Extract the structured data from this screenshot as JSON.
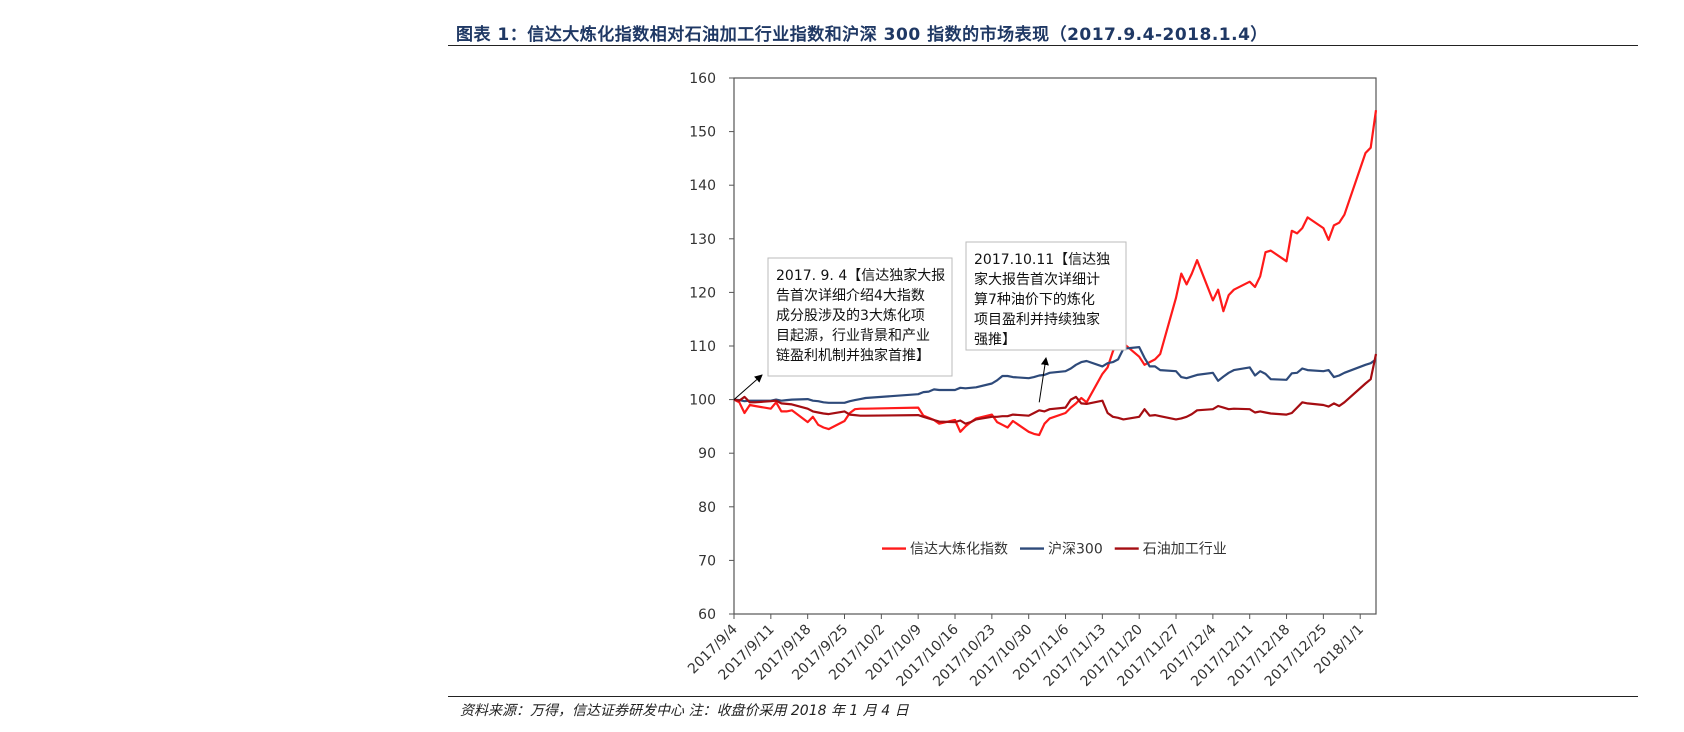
{
  "header": {
    "title": "图表 1：信达大炼化指数相对石油加工行业指数和沪深 300 指数的市场表现（2017.9.4-2018.1.4）"
  },
  "footer": {
    "source": "资料来源：万得，信达证券研发中心 注：收盘价采用 2018 年 1 月 4 日"
  },
  "chart_data": {
    "type": "line",
    "title": "",
    "xlabel": "",
    "ylabel": "",
    "ylim": [
      60,
      160
    ],
    "yticks": [
      60,
      70,
      80,
      90,
      100,
      110,
      120,
      130,
      140,
      150,
      160
    ],
    "xlim": [
      "2017/9/4",
      "2018/1/4"
    ],
    "xticks": [
      "2017/9/4",
      "2017/9/11",
      "2017/9/18",
      "2017/9/25",
      "2017/10/2",
      "2017/10/9",
      "2017/10/16",
      "2017/10/23",
      "2017/10/30",
      "2017/11/6",
      "2017/11/13",
      "2017/11/20",
      "2017/11/27",
      "2017/12/4",
      "2017/12/11",
      "2017/12/18",
      "2017/12/25",
      "2018/1/1"
    ],
    "grid": false,
    "legend_position": "bottom-center",
    "series": [
      {
        "name": "信达大炼化指数",
        "color": "#ff1a1a",
        "points": [
          [
            "2017/9/4",
            100
          ],
          [
            "2017/9/5",
            99.5
          ],
          [
            "2017/9/6",
            97.5
          ],
          [
            "2017/9/7",
            99
          ],
          [
            "2017/9/8",
            98.8
          ],
          [
            "2017/9/11",
            98.3
          ],
          [
            "2017/9/12",
            99.5
          ],
          [
            "2017/9/13",
            97.8
          ],
          [
            "2017/9/14",
            97.8
          ],
          [
            "2017/9/15",
            98
          ],
          [
            "2017/9/18",
            95.8
          ],
          [
            "2017/9/19",
            96.8
          ],
          [
            "2017/9/20",
            95.3
          ],
          [
            "2017/9/21",
            94.8
          ],
          [
            "2017/9/22",
            94.5
          ],
          [
            "2017/9/25",
            96
          ],
          [
            "2017/9/26",
            97.5
          ],
          [
            "2017/9/27",
            98.2
          ],
          [
            "2017/9/28",
            98.3
          ],
          [
            "2017/9/29",
            98.3
          ],
          [
            "2017/10/9",
            98.5
          ],
          [
            "2017/10/10",
            97
          ],
          [
            "2017/10/11",
            96.6
          ],
          [
            "2017/10/12",
            96.2
          ],
          [
            "2017/10/13",
            95.5
          ],
          [
            "2017/10/16",
            96.2
          ],
          [
            "2017/10/17",
            94
          ],
          [
            "2017/10/18",
            95
          ],
          [
            "2017/10/19",
            95.8
          ],
          [
            "2017/10/20",
            96.5
          ],
          [
            "2017/10/23",
            97.2
          ],
          [
            "2017/10/24",
            95.8
          ],
          [
            "2017/10/25",
            95.3
          ],
          [
            "2017/10/26",
            94.8
          ],
          [
            "2017/10/27",
            96
          ],
          [
            "2017/10/30",
            94
          ],
          [
            "2017/10/31",
            93.6
          ],
          [
            "2017/11/1",
            93.4
          ],
          [
            "2017/11/2",
            95.5
          ],
          [
            "2017/11/3",
            96.5
          ],
          [
            "2017/11/6",
            97.5
          ],
          [
            "2017/11/7",
            98.5
          ],
          [
            "2017/11/8",
            99.3
          ],
          [
            "2017/11/9",
            100.3
          ],
          [
            "2017/11/10",
            99.5
          ],
          [
            "2017/11/13",
            104.8
          ],
          [
            "2017/11/14",
            106
          ],
          [
            "2017/11/15",
            109
          ],
          [
            "2017/11/16",
            111
          ],
          [
            "2017/11/17",
            110.5
          ],
          [
            "2017/11/20",
            108
          ],
          [
            "2017/11/21",
            106.5
          ],
          [
            "2017/11/22",
            107
          ],
          [
            "2017/11/23",
            107.5
          ],
          [
            "2017/11/24",
            108.5
          ],
          [
            "2017/11/27",
            119
          ],
          [
            "2017/11/28",
            123.5
          ],
          [
            "2017/11/29",
            121.5
          ],
          [
            "2017/11/30",
            123.5
          ],
          [
            "2017/12/1",
            126
          ],
          [
            "2017/12/4",
            118.5
          ],
          [
            "2017/12/5",
            120.5
          ],
          [
            "2017/12/6",
            116.5
          ],
          [
            "2017/12/7",
            119.5
          ],
          [
            "2017/12/8",
            120.5
          ],
          [
            "2017/12/11",
            122
          ],
          [
            "2017/12/12",
            121
          ],
          [
            "2017/12/13",
            123
          ],
          [
            "2017/12/14",
            127.5
          ],
          [
            "2017/12/15",
            127.8
          ],
          [
            "2017/12/18",
            125.8
          ],
          [
            "2017/12/19",
            131.5
          ],
          [
            "2017/12/20",
            131
          ],
          [
            "2017/12/21",
            132
          ],
          [
            "2017/12/22",
            134
          ],
          [
            "2017/12/25",
            132
          ],
          [
            "2017/12/26",
            129.8
          ],
          [
            "2017/12/27",
            132.5
          ],
          [
            "2017/12/28",
            133
          ],
          [
            "2017/12/29",
            134.5
          ],
          [
            "2018/1/2",
            146
          ],
          [
            "2018/1/3",
            147
          ],
          [
            "2018/1/4",
            154
          ]
        ]
      },
      {
        "name": "沪深300",
        "color": "#2e4a7a",
        "points": [
          [
            "2017/9/4",
            100
          ],
          [
            "2017/9/5",
            99.9
          ],
          [
            "2017/9/6",
            99.7
          ],
          [
            "2017/9/7",
            99.8
          ],
          [
            "2017/9/8",
            99.8
          ],
          [
            "2017/9/11",
            99.8
          ],
          [
            "2017/9/12",
            100
          ],
          [
            "2017/9/13",
            99.8
          ],
          [
            "2017/9/14",
            99.9
          ],
          [
            "2017/9/15",
            100
          ],
          [
            "2017/9/18",
            100.1
          ],
          [
            "2017/9/19",
            99.8
          ],
          [
            "2017/9/20",
            99.7
          ],
          [
            "2017/9/21",
            99.5
          ],
          [
            "2017/9/22",
            99.4
          ],
          [
            "2017/9/25",
            99.4
          ],
          [
            "2017/9/26",
            99.7
          ],
          [
            "2017/9/27",
            99.9
          ],
          [
            "2017/9/28",
            100.1
          ],
          [
            "2017/9/29",
            100.3
          ],
          [
            "2017/10/9",
            101
          ],
          [
            "2017/10/10",
            101.4
          ],
          [
            "2017/10/11",
            101.5
          ],
          [
            "2017/10/12",
            101.9
          ],
          [
            "2017/10/13",
            101.8
          ],
          [
            "2017/10/16",
            101.8
          ],
          [
            "2017/10/17",
            102.2
          ],
          [
            "2017/10/18",
            102.1
          ],
          [
            "2017/10/19",
            102.2
          ],
          [
            "2017/10/20",
            102.3
          ],
          [
            "2017/10/23",
            103
          ],
          [
            "2017/10/24",
            103.6
          ],
          [
            "2017/10/25",
            104.4
          ],
          [
            "2017/10/26",
            104.4
          ],
          [
            "2017/10/27",
            104.2
          ],
          [
            "2017/10/30",
            104
          ],
          [
            "2017/10/31",
            104.2
          ],
          [
            "2017/11/1",
            104.5
          ],
          [
            "2017/11/2",
            104.6
          ],
          [
            "2017/11/3",
            105
          ],
          [
            "2017/11/6",
            105.3
          ],
          [
            "2017/11/7",
            105.8
          ],
          [
            "2017/11/8",
            106.5
          ],
          [
            "2017/11/9",
            107
          ],
          [
            "2017/11/10",
            107.2
          ],
          [
            "2017/11/13",
            106.2
          ],
          [
            "2017/11/14",
            106.8
          ],
          [
            "2017/11/15",
            107
          ],
          [
            "2017/11/16",
            107.5
          ],
          [
            "2017/11/17",
            109.5
          ],
          [
            "2017/11/20",
            109.8
          ],
          [
            "2017/11/21",
            107.8
          ],
          [
            "2017/11/22",
            106.2
          ],
          [
            "2017/11/23",
            106.2
          ],
          [
            "2017/11/24",
            105.5
          ],
          [
            "2017/11/27",
            105.3
          ],
          [
            "2017/11/28",
            104.2
          ],
          [
            "2017/11/29",
            104
          ],
          [
            "2017/11/30",
            104.3
          ],
          [
            "2017/12/1",
            104.6
          ],
          [
            "2017/12/4",
            105
          ],
          [
            "2017/12/5",
            103.5
          ],
          [
            "2017/12/6",
            104.3
          ],
          [
            "2017/12/7",
            105
          ],
          [
            "2017/12/8",
            105.5
          ],
          [
            "2017/12/11",
            106
          ],
          [
            "2017/12/12",
            104.5
          ],
          [
            "2017/12/13",
            105.3
          ],
          [
            "2017/12/14",
            104.8
          ],
          [
            "2017/12/15",
            103.8
          ],
          [
            "2017/12/18",
            103.7
          ],
          [
            "2017/12/19",
            104.9
          ],
          [
            "2017/12/20",
            105
          ],
          [
            "2017/12/21",
            105.8
          ],
          [
            "2017/12/22",
            105.5
          ],
          [
            "2017/12/25",
            105.3
          ],
          [
            "2017/12/26",
            105.5
          ],
          [
            "2017/12/27",
            104.2
          ],
          [
            "2017/12/28",
            104.5
          ],
          [
            "2017/12/29",
            105
          ],
          [
            "2018/1/2",
            106.5
          ],
          [
            "2018/1/3",
            106.8
          ],
          [
            "2018/1/4",
            107.5
          ]
        ]
      },
      {
        "name": "石油加工行业",
        "color": "#a50d12",
        "points": [
          [
            "2017/9/4",
            100
          ],
          [
            "2017/9/5",
            99.8
          ],
          [
            "2017/9/6",
            100.5
          ],
          [
            "2017/9/7",
            99.5
          ],
          [
            "2017/9/8",
            99.5
          ],
          [
            "2017/9/11",
            99.7
          ],
          [
            "2017/9/12",
            99.8
          ],
          [
            "2017/9/13",
            99.3
          ],
          [
            "2017/9/14",
            99.2
          ],
          [
            "2017/9/15",
            99.1
          ],
          [
            "2017/9/18",
            98.3
          ],
          [
            "2017/9/19",
            97.8
          ],
          [
            "2017/9/20",
            97.6
          ],
          [
            "2017/9/21",
            97.4
          ],
          [
            "2017/9/22",
            97.3
          ],
          [
            "2017/9/25",
            97.8
          ],
          [
            "2017/9/26",
            97.2
          ],
          [
            "2017/9/27",
            97.1
          ],
          [
            "2017/9/28",
            97
          ],
          [
            "2017/9/29",
            97
          ],
          [
            "2017/10/9",
            97.1
          ],
          [
            "2017/10/10",
            96.8
          ],
          [
            "2017/10/11",
            96.5
          ],
          [
            "2017/10/12",
            96.2
          ],
          [
            "2017/10/13",
            95.9
          ],
          [
            "2017/10/16",
            95.8
          ],
          [
            "2017/10/17",
            96.1
          ],
          [
            "2017/10/18",
            95.5
          ],
          [
            "2017/10/19",
            95.8
          ],
          [
            "2017/10/20",
            96.3
          ],
          [
            "2017/10/23",
            96.8
          ],
          [
            "2017/10/24",
            96.8
          ],
          [
            "2017/10/25",
            96.9
          ],
          [
            "2017/10/26",
            96.9
          ],
          [
            "2017/10/27",
            97.2
          ],
          [
            "2017/10/30",
            97
          ],
          [
            "2017/10/31",
            97.5
          ],
          [
            "2017/11/1",
            98
          ],
          [
            "2017/11/2",
            97.8
          ],
          [
            "2017/11/3",
            98.2
          ],
          [
            "2017/11/6",
            98.5
          ],
          [
            "2017/11/7",
            100
          ],
          [
            "2017/11/8",
            100.5
          ],
          [
            "2017/11/9",
            99.3
          ],
          [
            "2017/11/10",
            99.2
          ],
          [
            "2017/11/13",
            99.8
          ],
          [
            "2017/11/14",
            97.5
          ],
          [
            "2017/11/15",
            96.8
          ],
          [
            "2017/11/16",
            96.6
          ],
          [
            "2017/11/17",
            96.3
          ],
          [
            "2017/11/20",
            96.8
          ],
          [
            "2017/11/21",
            98.2
          ],
          [
            "2017/11/22",
            97
          ],
          [
            "2017/11/23",
            97.1
          ],
          [
            "2017/11/24",
            96.9
          ],
          [
            "2017/11/27",
            96.3
          ],
          [
            "2017/11/28",
            96.5
          ],
          [
            "2017/11/29",
            96.8
          ],
          [
            "2017/11/30",
            97.3
          ],
          [
            "2017/12/1",
            98
          ],
          [
            "2017/12/4",
            98.2
          ],
          [
            "2017/12/5",
            98.8
          ],
          [
            "2017/12/6",
            98.5
          ],
          [
            "2017/12/7",
            98.2
          ],
          [
            "2017/12/8",
            98.3
          ],
          [
            "2017/12/11",
            98.2
          ],
          [
            "2017/12/12",
            97.6
          ],
          [
            "2017/12/13",
            97.8
          ],
          [
            "2017/12/14",
            97.6
          ],
          [
            "2017/12/15",
            97.4
          ],
          [
            "2017/12/18",
            97.2
          ],
          [
            "2017/12/19",
            97.5
          ],
          [
            "2017/12/20",
            98.5
          ],
          [
            "2017/12/21",
            99.5
          ],
          [
            "2017/12/22",
            99.3
          ],
          [
            "2017/12/25",
            99
          ],
          [
            "2017/12/26",
            98.7
          ],
          [
            "2017/12/27",
            99.3
          ],
          [
            "2017/12/28",
            98.8
          ],
          [
            "2017/12/29",
            99.5
          ],
          [
            "2018/1/2",
            103
          ],
          [
            "2018/1/3",
            103.8
          ],
          [
            "2018/1/4",
            108.5
          ]
        ]
      }
    ],
    "annotations": [
      {
        "name": "annotation-2017-9-4",
        "lines": [
          "2017. 9. 4【信达独家大报",
          "告首次详细介绍4大指数",
          "成分股涉及的3大炼化项",
          "目起源，行业背景和产业",
          "链盈利机制并独家首推】"
        ],
        "arrow_to": [
          "2017/9/4",
          100
        ]
      },
      {
        "name": "annotation-2017-10-11",
        "lines": [
          "2017.10.11【信达独",
          "家大报告首次详细计",
          "算7种油价下的炼化",
          "项目盈利并持续独家",
          "强推】"
        ],
        "arrow_to": [
          "2017/11/1",
          107.5
        ]
      }
    ]
  }
}
